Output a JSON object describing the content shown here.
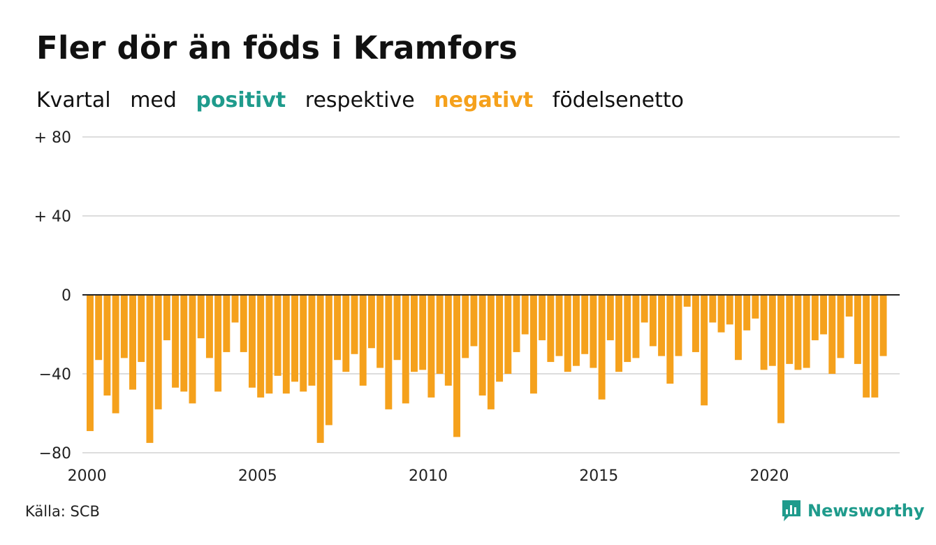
{
  "title": "Fler dör än föds i Kramfors",
  "subtitle": {
    "w1": "Kvartal",
    "w2": "med",
    "positive": "positivt",
    "w3": "respektive",
    "negative": "negativt",
    "w4": "födelsenetto"
  },
  "source": "Källa: SCB",
  "brand": {
    "name": "Newsworthy",
    "icon": "newsworthy-logo-icon"
  },
  "colors": {
    "positive": "#1f9b8c",
    "negative": "#f5a11c",
    "grid": "#dddddd",
    "axis": "#222222"
  },
  "chart_data": {
    "type": "bar",
    "title": "Fler dör än föds i Kramfors",
    "xlabel": "",
    "ylabel": "",
    "x_start": 2000.0,
    "x_step": 0.25,
    "xlim": [
      2000,
      2023.75
    ],
    "ylim": [
      -80,
      80
    ],
    "y_ticks": [
      {
        "value": 80,
        "label": "+ 80"
      },
      {
        "value": 40,
        "label": "+ 40"
      },
      {
        "value": 0,
        "label": "0"
      },
      {
        "value": -40,
        "label": "−40"
      },
      {
        "value": -80,
        "label": "−80"
      }
    ],
    "x_ticks": [
      {
        "value": 2000,
        "label": "2000"
      },
      {
        "value": 2005,
        "label": "2005"
      },
      {
        "value": 2010,
        "label": "2010"
      },
      {
        "value": 2015,
        "label": "2015"
      },
      {
        "value": 2020,
        "label": "2020"
      }
    ],
    "grid": true,
    "values": [
      -69,
      -33,
      -51,
      -60,
      -32,
      -48,
      -34,
      -75,
      -58,
      -23,
      -47,
      -49,
      -55,
      -22,
      -32,
      -49,
      -29,
      -14,
      -29,
      -47,
      -52,
      -50,
      -41,
      -50,
      -44,
      -49,
      -46,
      -75,
      -66,
      -33,
      -39,
      -30,
      -46,
      -27,
      -37,
      -58,
      -33,
      -55,
      -39,
      -38,
      -52,
      -40,
      -46,
      -72,
      -32,
      -26,
      -51,
      -58,
      -44,
      -40,
      -29,
      -20,
      -50,
      -23,
      -34,
      -31,
      -39,
      -36,
      -30,
      -37,
      -53,
      -23,
      -39,
      -34,
      -32,
      -14,
      -26,
      -31,
      -45,
      -31,
      -6,
      -29,
      -56,
      -14,
      -19,
      -15,
      -33,
      -18,
      -12,
      -38,
      -36,
      -65,
      -35,
      -38,
      -37,
      -23,
      -20,
      -40,
      -32,
      -11,
      -35,
      -52,
      -52,
      -31
    ]
  }
}
